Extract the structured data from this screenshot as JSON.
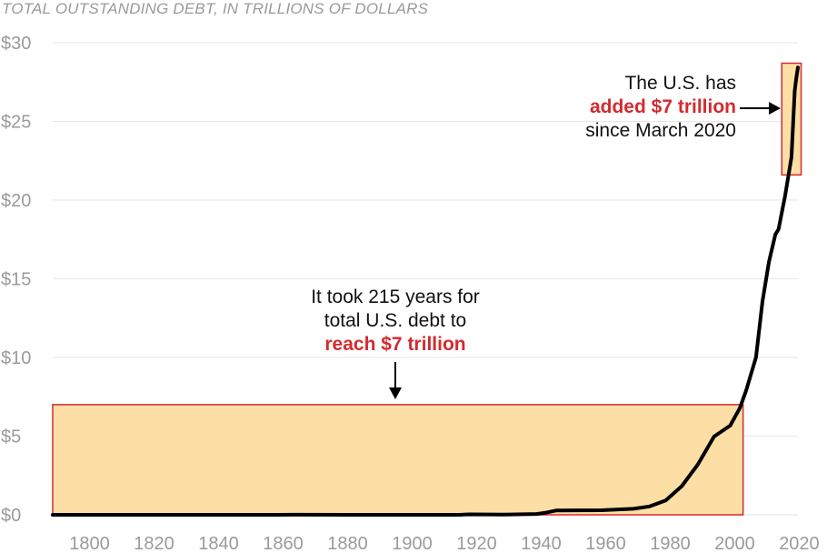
{
  "title": "TOTAL OUTSTANDING DEBT, IN TRILLIONS OF DOLLARS",
  "annotations": {
    "left": {
      "line1": "It took 215 years for",
      "line2": "total U.S. debt to",
      "highlight": "reach $7 trillion"
    },
    "right": {
      "line1": "The U.S. has",
      "highlight": "added $7 trillion",
      "line3": "since March 2020"
    }
  },
  "colors": {
    "line": "#000000",
    "highlight_fill": "#fddfa6",
    "highlight_stroke": "#d42a2f",
    "accent_text": "#d42a2f",
    "axis_text": "#9a9a9a",
    "grid": "#e6e6e6"
  },
  "chart_data": {
    "type": "line",
    "title": "TOTAL OUTSTANDING DEBT, IN TRILLIONS OF DOLLARS",
    "xlabel": "",
    "ylabel": "",
    "xlim": [
      1790,
      2021
    ],
    "ylim": [
      0,
      30
    ],
    "yticks": [
      0,
      5,
      10,
      15,
      20,
      25,
      30
    ],
    "ytick_labels": [
      "$0",
      "$5",
      "$10",
      "$15",
      "$20",
      "$25",
      "$30"
    ],
    "xticks": [
      1800,
      1820,
      1840,
      1860,
      1880,
      1900,
      1920,
      1940,
      1960,
      1980,
      2000,
      2020
    ],
    "xtick_labels": [
      "1800",
      "1820",
      "1840",
      "1860",
      "1880",
      "1900",
      "1920",
      "1940",
      "1960",
      "1980",
      "2000",
      "2020"
    ],
    "grid": "horizontal",
    "series": [
      {
        "values_x": [
          1790,
          1860,
          1865,
          1900,
          1916,
          1919,
          1930,
          1940,
          1943,
          1946,
          1960,
          1970,
          1975,
          1980,
          1985,
          1990,
          1995,
          2000,
          2003,
          2005,
          2008,
          2010,
          2012,
          2014,
          2015,
          2017,
          2019,
          2020,
          2020.5,
          2021
        ],
        "values_y": [
          0.0,
          0.0,
          0.003,
          0.002,
          0.001,
          0.03,
          0.02,
          0.05,
          0.14,
          0.27,
          0.29,
          0.38,
          0.53,
          0.91,
          1.82,
          3.21,
          4.97,
          5.67,
          6.78,
          7.93,
          10.02,
          13.56,
          16.07,
          17.82,
          18.15,
          20.24,
          22.72,
          26.95,
          27.75,
          28.43
        ]
      }
    ],
    "highlight_regions": [
      {
        "x": [
          1790,
          2004
        ],
        "y": [
          0,
          7
        ]
      },
      {
        "x": [
          2016,
          2022
        ],
        "y": [
          21.6,
          28.7
        ]
      }
    ]
  }
}
